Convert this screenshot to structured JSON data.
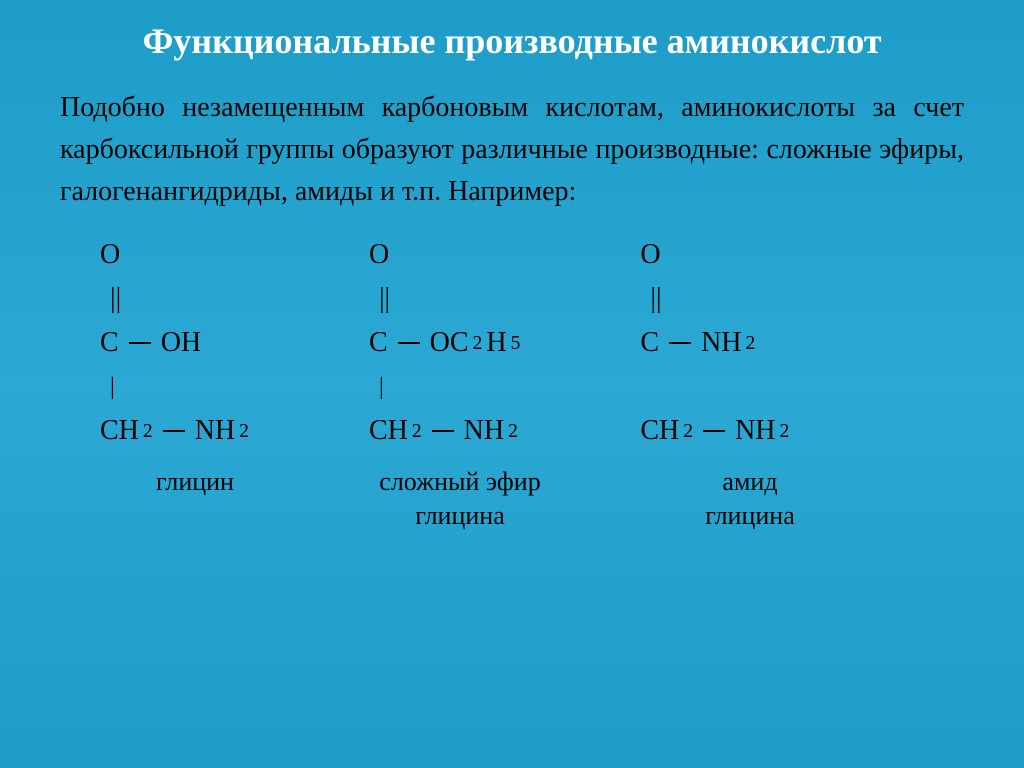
{
  "slide": {
    "title": "Функциональные производные аминокислот",
    "body": "Подобно незамещенным карбоновым кислотам, аминокислоты за счет карбоксильной группы образуют различные производные: сложные эфиры, галогенангидриды, амиды и т.п. Например:",
    "background_gradient": [
      "#1e9cc8",
      "#2ba8d4",
      "#1e9cc8"
    ],
    "title_color": "#ffffff",
    "text_color": "#000000",
    "title_fontsize": 36,
    "body_fontsize": 28,
    "label_fontsize": 26
  },
  "formulas": [
    {
      "top": "O",
      "carbon_sub": "OH",
      "bottom_left": "CH",
      "bottom_left_sub": "2",
      "bottom_right": "NH",
      "bottom_right_sub": "2",
      "label": "глицин"
    },
    {
      "top": "O",
      "carbon_sub": "OC",
      "carbon_sub2": "2",
      "carbon_sub3": "H",
      "carbon_sub4": "5",
      "bottom_left": "CH",
      "bottom_left_sub": "2",
      "bottom_right": "NH",
      "bottom_right_sub": "2",
      "label_line1": "сложный эфир",
      "label_line2": "глицина"
    },
    {
      "top": "O",
      "carbon_sub": "NH",
      "carbon_sub2": "2",
      "bottom_left": "CH",
      "bottom_left_sub": "2",
      "bottom_right": "NH",
      "bottom_right_sub": "2",
      "label_line1": "амид",
      "label_line2": "глицина"
    }
  ]
}
